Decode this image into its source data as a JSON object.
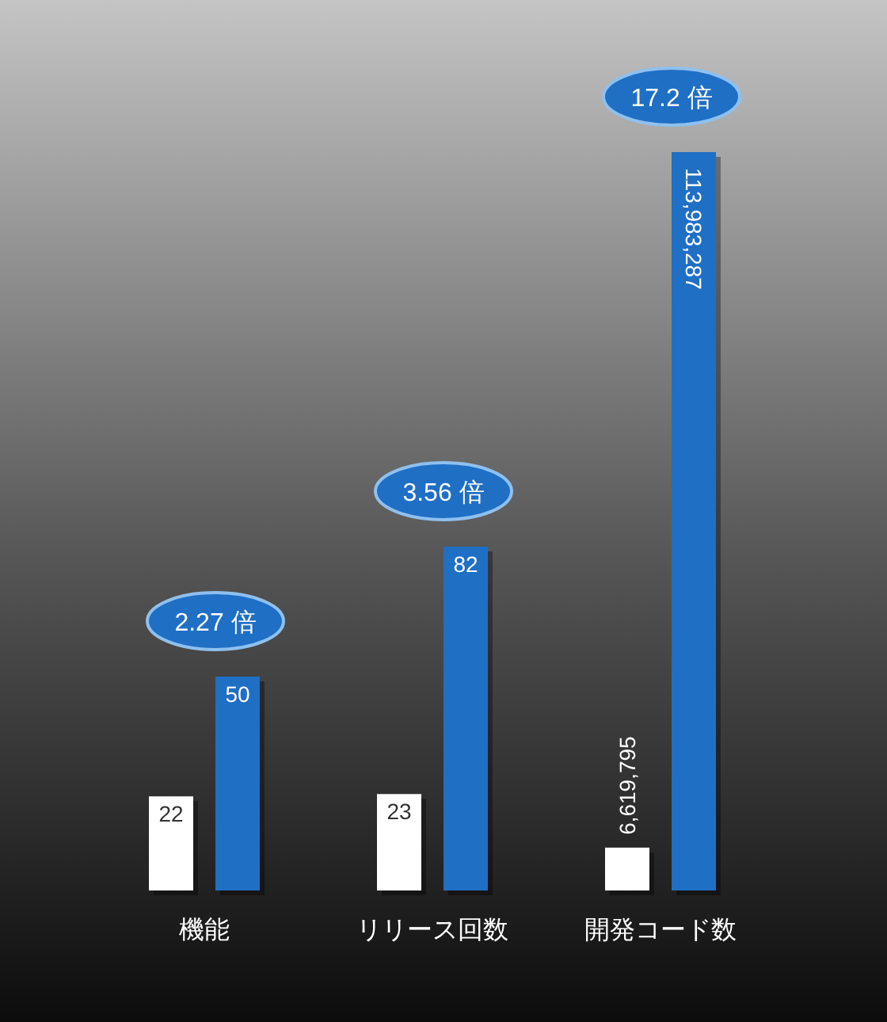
{
  "chart_data": [
    {
      "type": "bar",
      "categories": [
        "機能"
      ],
      "series": [
        {
          "color": "#ffffff",
          "values": [
            22
          ],
          "value_labels": [
            "22"
          ]
        },
        {
          "color": "#1f6fc5",
          "values": [
            50
          ],
          "value_labels": [
            "50"
          ]
        }
      ],
      "annotations": [
        "2.27 倍"
      ]
    },
    {
      "type": "bar",
      "categories": [
        "リリース回数"
      ],
      "series": [
        {
          "color": "#ffffff",
          "values": [
            23
          ],
          "value_labels": [
            "23"
          ]
        },
        {
          "color": "#1f6fc5",
          "values": [
            82
          ],
          "value_labels": [
            "82"
          ]
        }
      ],
      "annotations": [
        "3.56 倍"
      ]
    },
    {
      "type": "bar",
      "categories": [
        "開発コード数"
      ],
      "series": [
        {
          "color": "#ffffff",
          "values": [
            6619795
          ],
          "value_labels": [
            "6,619,795"
          ]
        },
        {
          "color": "#1f6fc5",
          "values": [
            113983287
          ],
          "value_labels": [
            "113,983,287"
          ]
        }
      ],
      "annotations": [
        "17.2 倍"
      ]
    }
  ]
}
